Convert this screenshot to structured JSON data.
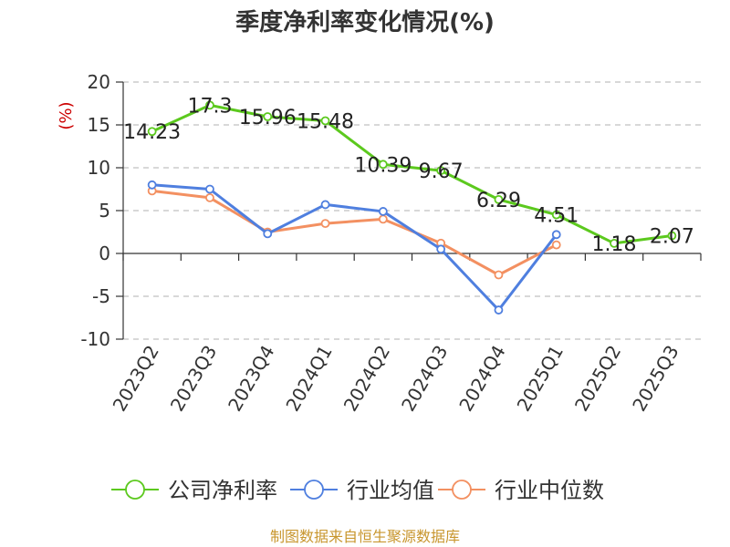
{
  "chart_data": {
    "type": "line",
    "title": "季度净利率变化情况(%)",
    "ylabel": "(%)",
    "xlabel": "",
    "ylim": [
      -10,
      20
    ],
    "yticks": [
      20,
      15,
      10,
      5,
      0,
      -5,
      -10
    ],
    "categories": [
      "2023Q2",
      "2023Q3",
      "2023Q4",
      "2024Q1",
      "2024Q2",
      "2024Q3",
      "2024Q4",
      "2025Q1",
      "2025Q2",
      "2025Q3"
    ],
    "series": [
      {
        "name": "公司净利率",
        "color": "#5cc91e",
        "values": [
          14.23,
          17.3,
          15.96,
          15.48,
          10.39,
          9.67,
          6.29,
          4.51,
          1.18,
          2.07
        ],
        "labels": [
          "14.23",
          "17.3",
          "15.96",
          "15.48",
          "10.39",
          "9.67",
          "6.29",
          "4.51",
          "1.18",
          "2.07"
        ]
      },
      {
        "name": "行业均值",
        "color": "#4f7fdf",
        "values": [
          8.0,
          7.5,
          2.3,
          5.7,
          4.9,
          0.5,
          -6.6,
          2.2,
          null,
          null
        ]
      },
      {
        "name": "行业中位数",
        "color": "#f39061",
        "values": [
          7.3,
          6.5,
          2.5,
          3.5,
          4.0,
          1.2,
          -2.5,
          1.0,
          null,
          null
        ]
      }
    ],
    "grid": true,
    "legend": "bottom"
  },
  "source": "制图数据来自恒生聚源数据库"
}
